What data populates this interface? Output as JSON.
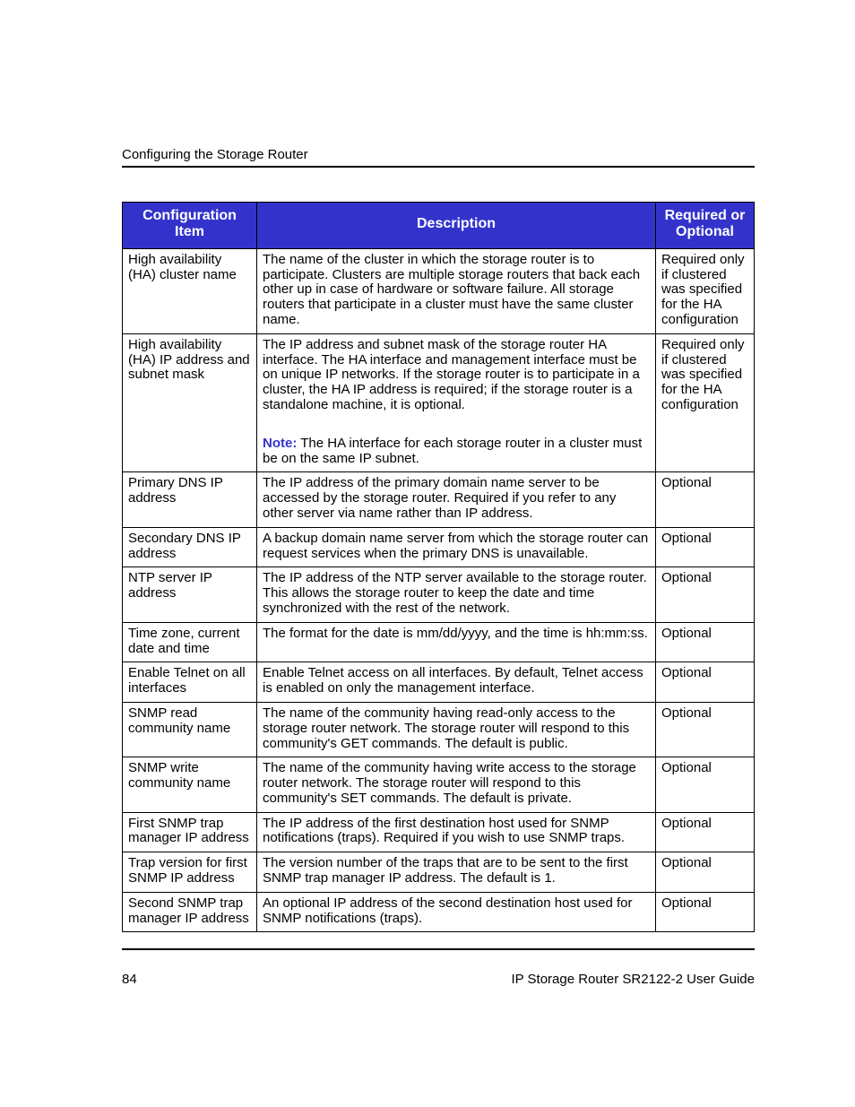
{
  "page": {
    "running_head": "Configuring the Storage Router",
    "number": "84",
    "footer_title": "IP Storage Router SR2122-2 User Guide"
  },
  "colors": {
    "header_bg": "#3333cc",
    "header_fg": "#ffffff",
    "note_label": "#3333cc",
    "rule": "#000000",
    "text": "#000000"
  },
  "table": {
    "columns": {
      "config_item_l1": "Configuration",
      "config_item_l2": "Item",
      "description": "Description",
      "required_l1": "Required or",
      "required_l2": "Optional"
    },
    "rows": [
      {
        "item": "High availability (HA) cluster name",
        "desc": "The name of the cluster in which the storage router is to participate. Clusters are multiple storage routers that back each other up in case of hardware or software failure. All storage routers that participate in a cluster must have the same cluster name.",
        "req": "Required only if clustered was specified for the HA configuration"
      },
      {
        "item": "High availability (HA) IP address and subnet mask",
        "desc": "The IP address and subnet mask of the storage router HA interface. The HA interface and management interface must be on unique IP networks. If the storage router is to participate in a cluster, the HA IP address is required; if the storage router is a standalone machine, it is optional.",
        "note_label": "Note:",
        "note": "The HA interface for each storage router in a cluster must be on the same IP subnet.",
        "req": "Required only if clustered was specified for the HA configuration"
      },
      {
        "item": "Primary DNS IP address",
        "desc": "The IP address of the primary domain name server to be accessed by the storage router. Required if you refer to any other server via name rather than IP address.",
        "req": "Optional"
      },
      {
        "item": "Secondary DNS IP address",
        "desc": "A backup domain name server from which the storage router can request services when the primary DNS is unavailable.",
        "req": "Optional"
      },
      {
        "item": "NTP server IP address",
        "desc": "The IP address of the NTP server available to the storage router. This allows the storage router to keep the date and time synchronized with the rest of the network.",
        "req": "Optional"
      },
      {
        "item": "Time zone, current date and time",
        "desc": "The format for the date is mm/dd/yyyy, and the time is hh:mm:ss.",
        "req": "Optional"
      },
      {
        "item": "Enable Telnet on all interfaces",
        "desc": "Enable Telnet access on all interfaces. By default, Telnet access is enabled on only the management interface.",
        "req": "Optional"
      },
      {
        "item": "SNMP read community name",
        "desc": "The name of the community having read-only access to the storage router network. The storage router will respond to this community's GET commands. The default is public.",
        "req": "Optional"
      },
      {
        "item": "SNMP write community name",
        "desc": "The name of the community having write access to the storage router network. The storage router will respond to this community's SET commands. The default is private.",
        "req": "Optional"
      },
      {
        "item": "First SNMP trap manager IP address",
        "desc": "The IP address of the first destination host used for SNMP notifications (traps). Required if you wish to use SNMP traps.",
        "req": "Optional"
      },
      {
        "item": "Trap version for first SNMP IP address",
        "desc": "The version number of the traps that are to be sent to the first SNMP trap manager IP address. The default is 1.",
        "req": "Optional"
      },
      {
        "item": "Second SNMP trap manager IP address",
        "desc": "An optional IP address of the second destination host used for SNMP notifications (traps).",
        "req": "Optional"
      }
    ]
  }
}
